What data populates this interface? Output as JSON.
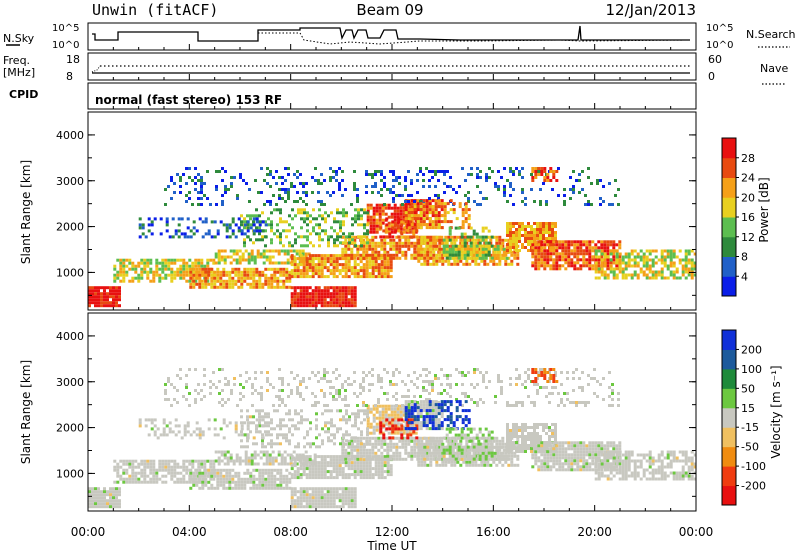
{
  "header": {
    "site": "Unwin (fitACF)",
    "beam": "Beam 09",
    "date": "12/Jan/2013"
  },
  "top_panels": {
    "nsky_label": "N.Sky",
    "nsearch_label": "N.Search",
    "nsky_ticks": [
      "10^5",
      "10^0"
    ],
    "nsearch_ticks": [
      "10^5",
      "10^0"
    ],
    "freq_label": "Freq.",
    "freq_unit": "[MHz]",
    "freq_ticks": [
      "18",
      "8"
    ],
    "nave_label": "Nave",
    "nave_ticks": [
      "60",
      "0"
    ],
    "cpid_label": "CPID",
    "cpid_text": "normal (fast stereo) 153 RF"
  },
  "chart_data": [
    {
      "type": "heatmap",
      "quantity": "Power",
      "ylabel": "Slant Range [km]",
      "ylim": [
        180,
        4500
      ],
      "yticks": [
        "1000",
        "2000",
        "3000",
        "4000"
      ],
      "xlim_hours": [
        0,
        24
      ],
      "colorbar": {
        "label": "Power [dB]",
        "ticks": [
          "4",
          "8",
          "12",
          "16",
          "20",
          "24",
          "28"
        ],
        "colors": [
          "#0a1ee8",
          "#2060c8",
          "#2e8a3c",
          "#5cbe50",
          "#e8d020",
          "#f5a018",
          "#e84a10",
          "#e81010"
        ]
      }
    },
    {
      "type": "heatmap",
      "quantity": "Velocity",
      "ylabel": "Slant Range [km]",
      "ylim": [
        180,
        4500
      ],
      "yticks": [
        "1000",
        "2000",
        "3000",
        "4000"
      ],
      "xlim_hours": [
        0,
        24
      ],
      "xlabel": "Time UT",
      "xticks": [
        "00:00",
        "04:00",
        "08:00",
        "12:00",
        "16:00",
        "20:00",
        "00:00"
      ],
      "colorbar": {
        "label": "Velocity [m s⁻¹]",
        "ticks": [
          "200",
          "100",
          "50",
          "15",
          "-15",
          "-50",
          "-100",
          "-200"
        ],
        "colors": [
          "#1030d8",
          "#1c5a9c",
          "#1e8a3a",
          "#6cc840",
          "#c8c8c0",
          "#f0c060",
          "#f08c10",
          "#f03c10",
          "#e81010"
        ]
      }
    }
  ]
}
